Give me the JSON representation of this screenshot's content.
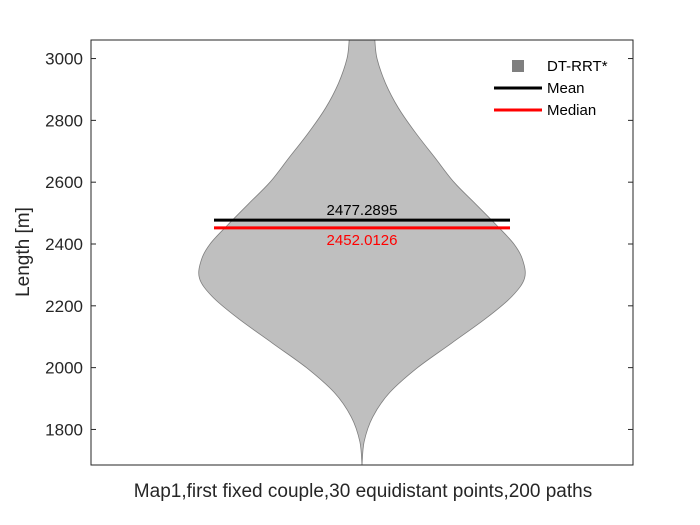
{
  "chart_data": {
    "type": "violin",
    "xlabel": "Map1,first fixed couple,30 equidistant points,200 paths",
    "ylabel": "Length [m]",
    "ylim": [
      1685,
      3060
    ],
    "yticks": [
      1800,
      2000,
      2200,
      2400,
      2600,
      2800,
      3000
    ],
    "grid": false,
    "legend_position": "top-right",
    "series": [
      {
        "name": "DT-RRT*",
        "color": "#bfbfbf",
        "edge_color": "#7f7f7f",
        "density_profile": [
          {
            "y": 1685,
            "half_width": 0.0
          },
          {
            "y": 1760,
            "half_width": 0.01
          },
          {
            "y": 1840,
            "half_width": 0.05
          },
          {
            "y": 1920,
            "half_width": 0.13
          },
          {
            "y": 2000,
            "half_width": 0.26
          },
          {
            "y": 2080,
            "half_width": 0.42
          },
          {
            "y": 2160,
            "half_width": 0.58
          },
          {
            "y": 2230,
            "half_width": 0.7
          },
          {
            "y": 2290,
            "half_width": 0.76
          },
          {
            "y": 2350,
            "half_width": 0.75
          },
          {
            "y": 2400,
            "half_width": 0.71
          },
          {
            "y": 2460,
            "half_width": 0.63
          },
          {
            "y": 2530,
            "half_width": 0.53
          },
          {
            "y": 2600,
            "half_width": 0.43
          },
          {
            "y": 2680,
            "half_width": 0.34
          },
          {
            "y": 2760,
            "half_width": 0.25
          },
          {
            "y": 2840,
            "half_width": 0.17
          },
          {
            "y": 2920,
            "half_width": 0.11
          },
          {
            "y": 3000,
            "half_width": 0.07
          },
          {
            "y": 3060,
            "half_width": 0.06
          }
        ]
      }
    ],
    "mean": {
      "label": "Mean",
      "value": 2477.2895,
      "text": "2477.2895",
      "color": "#000000"
    },
    "median": {
      "label": "Median",
      "value": 2452.0126,
      "text": "2452.0126",
      "color": "#ff0000"
    }
  }
}
